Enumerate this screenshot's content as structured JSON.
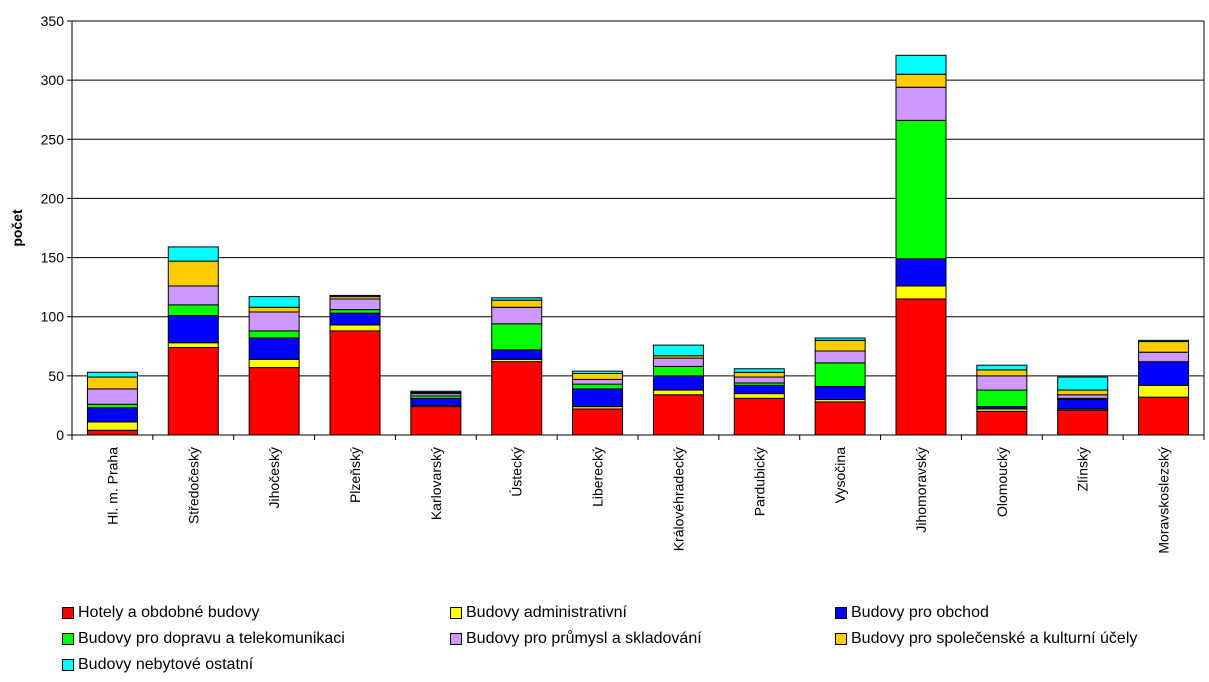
{
  "chart_data": {
    "type": "bar",
    "stacked": true,
    "title": "",
    "xlabel": "",
    "ylabel": "počet",
    "ylim": [
      0,
      350
    ],
    "yticks": [
      0,
      50,
      100,
      150,
      200,
      250,
      300,
      350
    ],
    "grid": true,
    "legend_position": "bottom",
    "categories": [
      "Hl. m. Praha",
      "Středočeský",
      "Jihočeský",
      "Plzeňský",
      "Karlovarský",
      "Ústecký",
      "Liberecký",
      "Královéhradecký",
      "Pardubický",
      "Vysočina",
      "Jihomoravský",
      "Olomoucký",
      "Zlínský",
      "Moravskoslezský"
    ],
    "series": [
      {
        "name": "Hotely a obdobné budovy",
        "color": "#ff0000",
        "values": [
          4,
          74,
          57,
          88,
          24,
          62,
          22,
          34,
          31,
          28,
          115,
          20,
          21,
          32
        ]
      },
      {
        "name": "Budovy administrativní",
        "color": "#ffff00",
        "values": [
          7,
          4,
          7,
          5,
          1,
          2,
          2,
          4,
          4,
          2,
          11,
          2,
          1,
          10
        ]
      },
      {
        "name": "Budovy pro obchod",
        "color": "#0000ff",
        "values": [
          12,
          23,
          18,
          10,
          6,
          8,
          15,
          12,
          7,
          11,
          23,
          2,
          8,
          20
        ]
      },
      {
        "name": "Budovy pro dopravu a telekomunikaci",
        "color": "#00ff00",
        "values": [
          3,
          9,
          6,
          3,
          2,
          22,
          4,
          8,
          2,
          20,
          117,
          14,
          1,
          0
        ]
      },
      {
        "name": "Budovy pro průmysl a skladování",
        "color": "#cc99ff",
        "values": [
          13,
          16,
          16,
          9,
          2,
          14,
          4,
          7,
          5,
          10,
          28,
          12,
          3,
          8
        ]
      },
      {
        "name": "Budovy pro společenské a kulturní účely",
        "color": "#ffcc00",
        "values": [
          10,
          21,
          4,
          2,
          1,
          6,
          5,
          2,
          4,
          9,
          11,
          5,
          4,
          9
        ]
      },
      {
        "name": "Budovy nebytové ostatní",
        "color": "#00ffff",
        "values": [
          4,
          12,
          9,
          1,
          1,
          2,
          2,
          9,
          3,
          2,
          16,
          4,
          11,
          1
        ]
      }
    ]
  }
}
